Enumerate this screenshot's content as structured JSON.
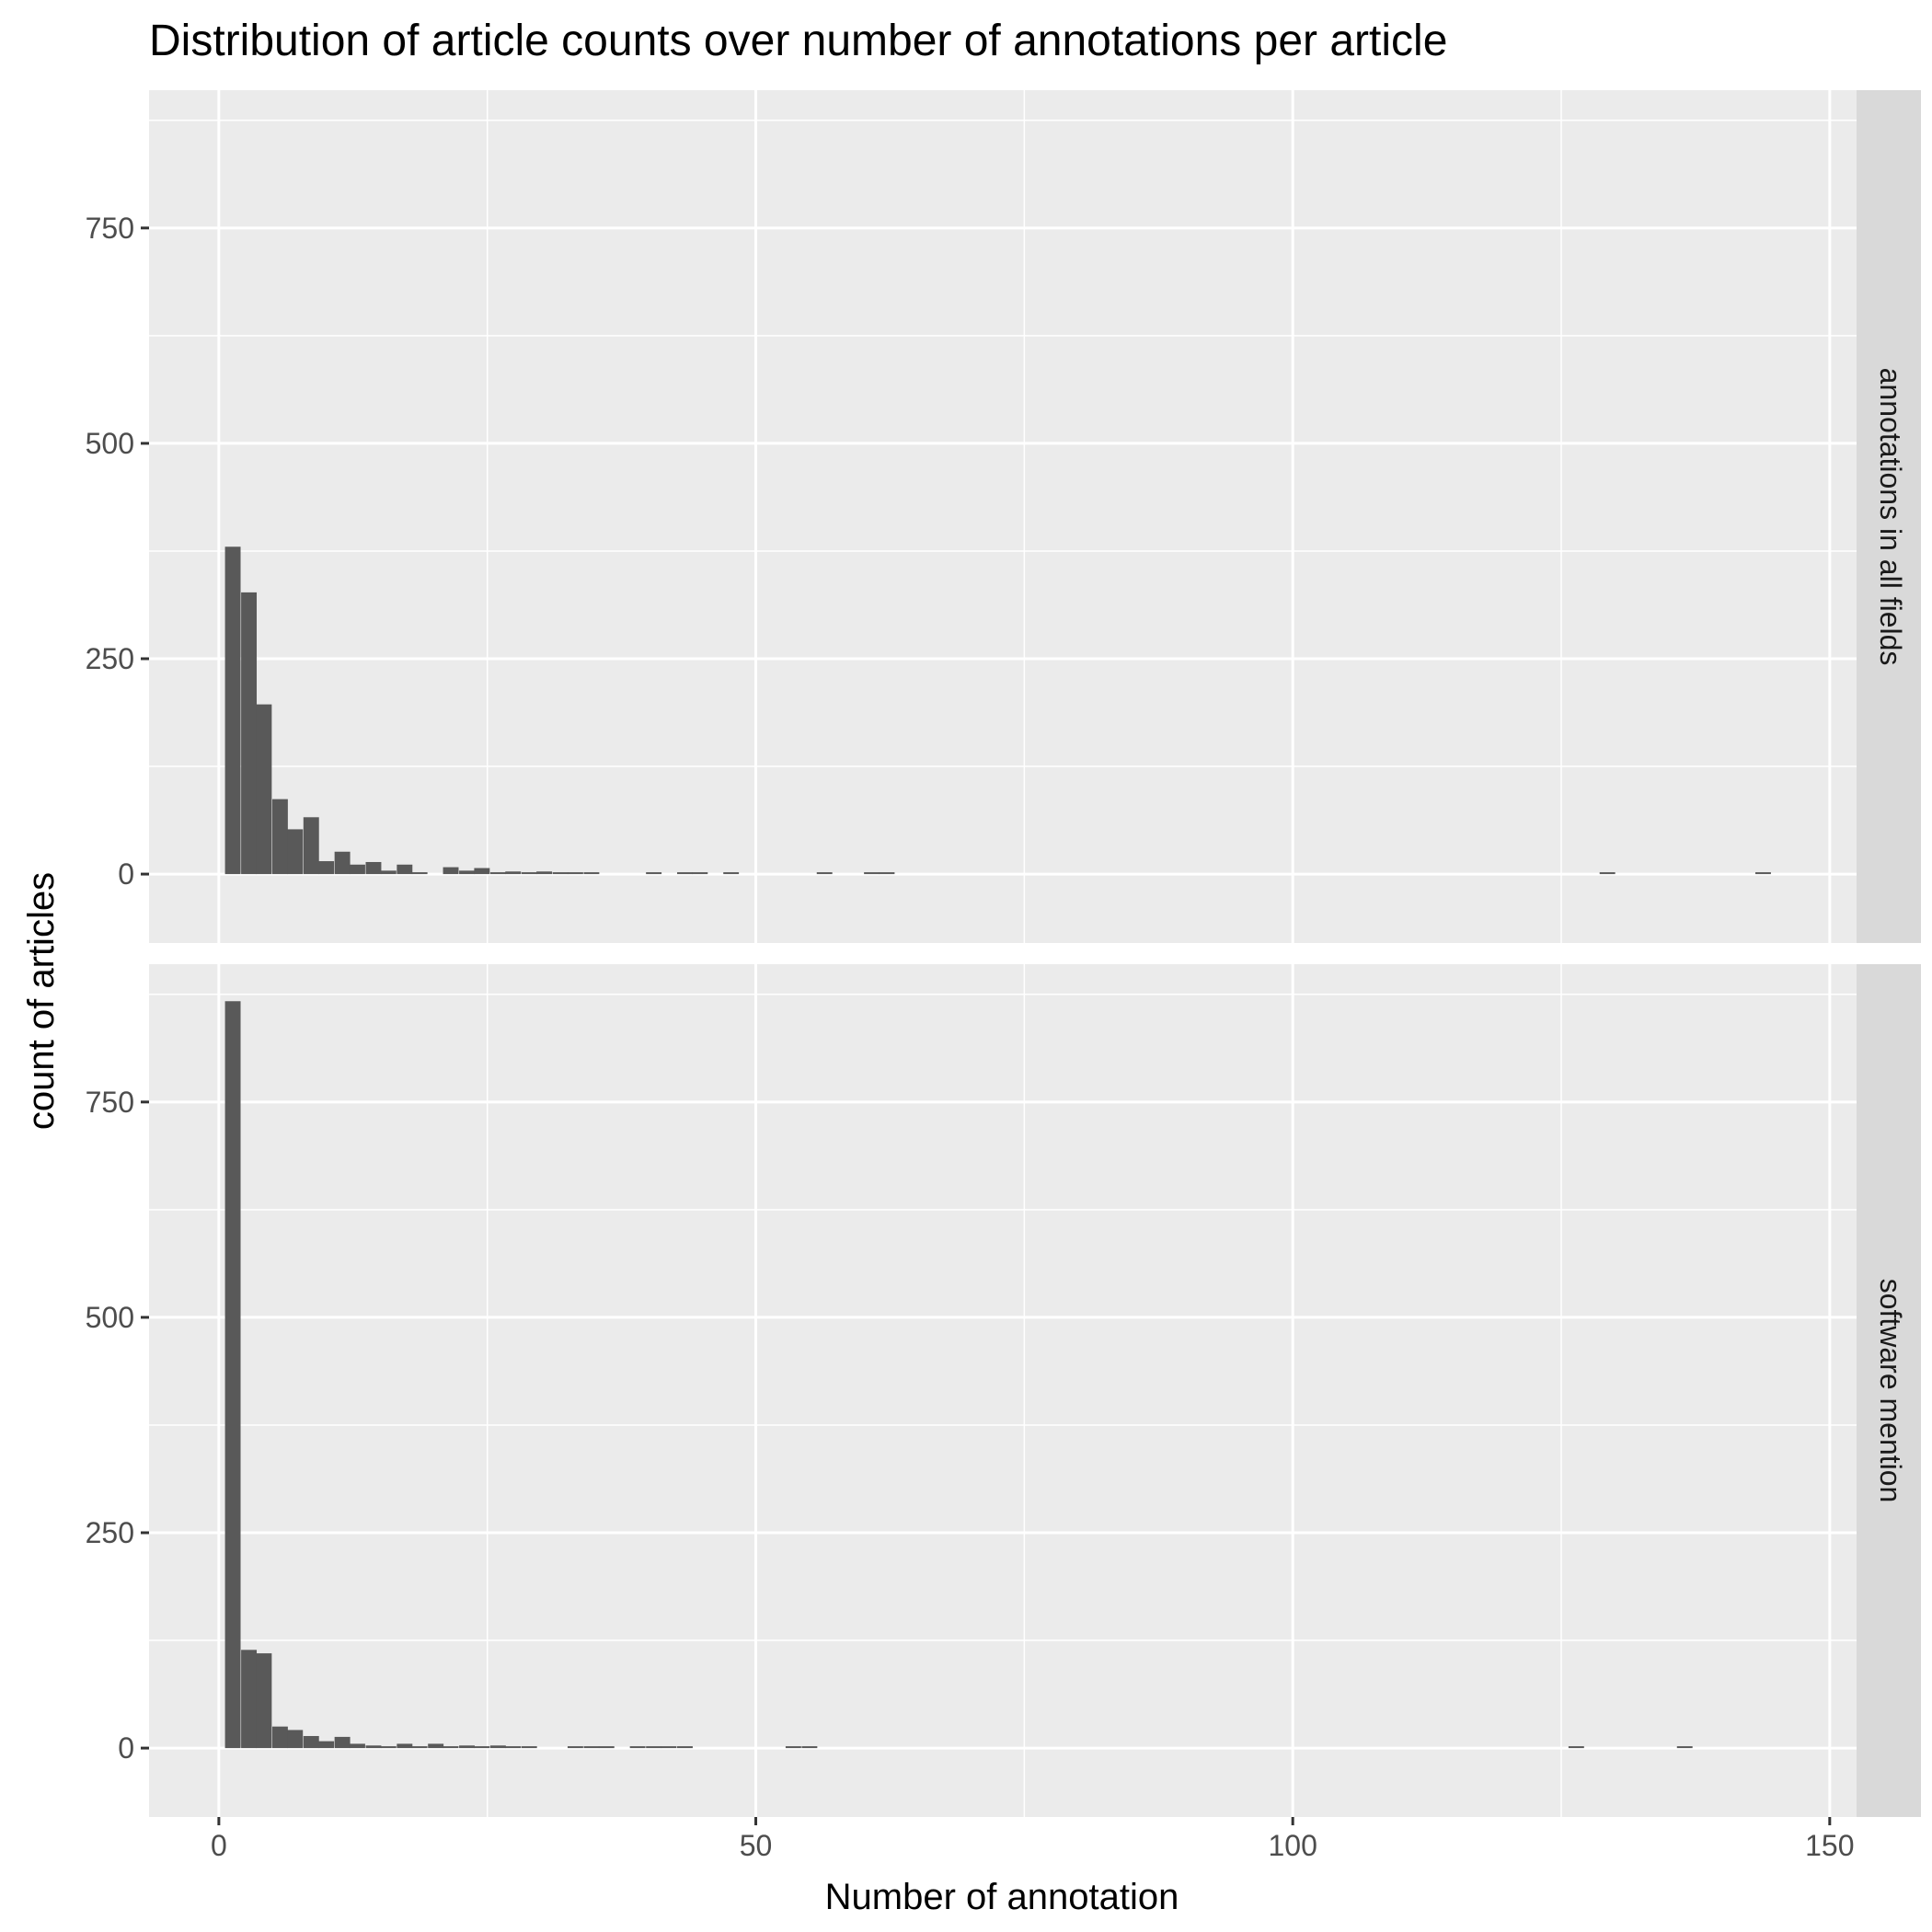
{
  "chart_data": {
    "type": "bar",
    "title": "Distribution of article counts over number of annotations per article",
    "xlabel": "Number of annotation",
    "ylabel": "count of articles",
    "xlim": [
      -6.5,
      152.5
    ],
    "ylim": [
      -80,
      910
    ],
    "x_ticks": [
      0,
      50,
      100,
      150
    ],
    "y_ticks": [
      0,
      250,
      500,
      750
    ],
    "bin_width": 1.45,
    "grid": true,
    "facets": [
      {
        "name": "annotations in all fields",
        "bins": [
          {
            "x": 1.3,
            "count": 380
          },
          {
            "x": 2.8,
            "count": 327
          },
          {
            "x": 4.2,
            "count": 197
          },
          {
            "x": 5.7,
            "count": 87
          },
          {
            "x": 7.1,
            "count": 52
          },
          {
            "x": 8.6,
            "count": 66
          },
          {
            "x": 10.0,
            "count": 15
          },
          {
            "x": 11.5,
            "count": 26
          },
          {
            "x": 12.9,
            "count": 11
          },
          {
            "x": 14.4,
            "count": 14
          },
          {
            "x": 15.8,
            "count": 4
          },
          {
            "x": 17.3,
            "count": 11
          },
          {
            "x": 18.7,
            "count": 2
          },
          {
            "x": 21.6,
            "count": 8
          },
          {
            "x": 23.1,
            "count": 4
          },
          {
            "x": 24.5,
            "count": 7
          },
          {
            "x": 26.0,
            "count": 2
          },
          {
            "x": 27.4,
            "count": 3
          },
          {
            "x": 28.9,
            "count": 2
          },
          {
            "x": 30.3,
            "count": 3
          },
          {
            "x": 31.8,
            "count": 1
          },
          {
            "x": 33.2,
            "count": 1
          },
          {
            "x": 34.7,
            "count": 1
          },
          {
            "x": 40.5,
            "count": 2
          },
          {
            "x": 43.4,
            "count": 2
          },
          {
            "x": 44.8,
            "count": 1
          },
          {
            "x": 47.7,
            "count": 1
          },
          {
            "x": 56.4,
            "count": 1
          },
          {
            "x": 60.8,
            "count": 1
          },
          {
            "x": 62.2,
            "count": 1
          },
          {
            "x": 129.3,
            "count": 1
          },
          {
            "x": 143.8,
            "count": 1
          }
        ]
      },
      {
        "name": "software mention",
        "bins": [
          {
            "x": 1.3,
            "count": 867
          },
          {
            "x": 2.8,
            "count": 114
          },
          {
            "x": 4.2,
            "count": 110
          },
          {
            "x": 5.7,
            "count": 25
          },
          {
            "x": 7.1,
            "count": 21
          },
          {
            "x": 8.6,
            "count": 14
          },
          {
            "x": 10.0,
            "count": 8
          },
          {
            "x": 11.5,
            "count": 13
          },
          {
            "x": 12.9,
            "count": 5
          },
          {
            "x": 14.4,
            "count": 3
          },
          {
            "x": 15.8,
            "count": 2
          },
          {
            "x": 17.3,
            "count": 5
          },
          {
            "x": 18.7,
            "count": 1
          },
          {
            "x": 20.2,
            "count": 5
          },
          {
            "x": 21.6,
            "count": 2
          },
          {
            "x": 23.1,
            "count": 3
          },
          {
            "x": 24.5,
            "count": 2
          },
          {
            "x": 26.0,
            "count": 3
          },
          {
            "x": 27.4,
            "count": 2
          },
          {
            "x": 28.9,
            "count": 1
          },
          {
            "x": 33.2,
            "count": 1
          },
          {
            "x": 34.7,
            "count": 1
          },
          {
            "x": 36.1,
            "count": 1
          },
          {
            "x": 39.0,
            "count": 2
          },
          {
            "x": 40.5,
            "count": 2
          },
          {
            "x": 41.9,
            "count": 1
          },
          {
            "x": 43.4,
            "count": 2
          },
          {
            "x": 53.5,
            "count": 1
          },
          {
            "x": 55.0,
            "count": 1
          },
          {
            "x": 126.4,
            "count": 1
          },
          {
            "x": 136.5,
            "count": 1
          }
        ]
      }
    ],
    "colors": {
      "panel": "#ebebeb",
      "grid": "#ffffff",
      "bar": "#595959",
      "strip": "#d9d9d9",
      "tick_text": "#4d4d4d",
      "tick_line": "#333333"
    }
  }
}
